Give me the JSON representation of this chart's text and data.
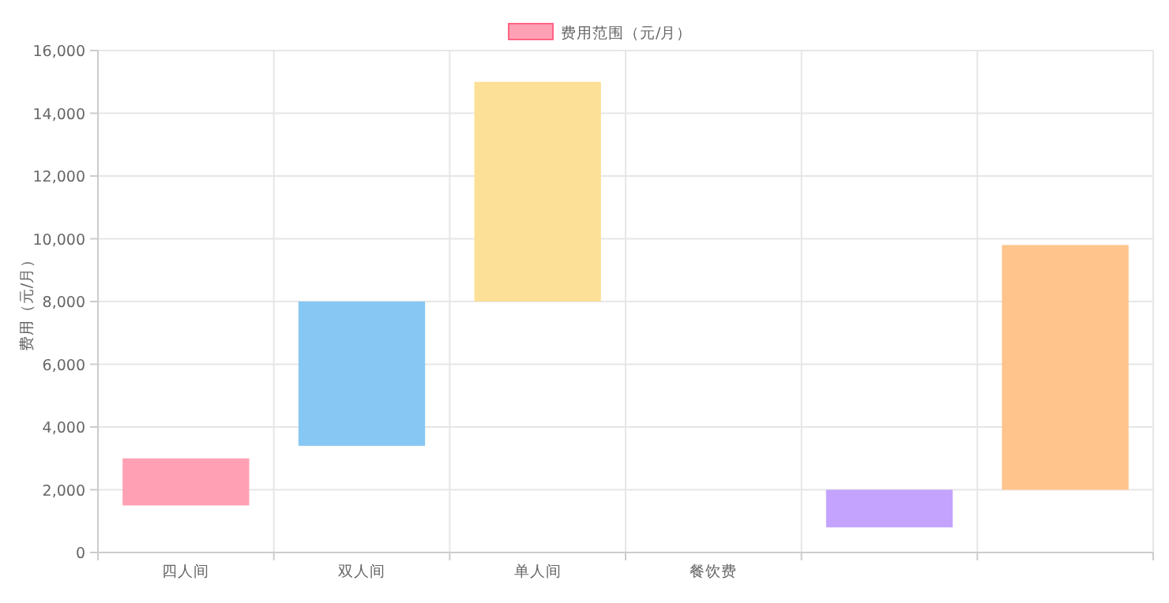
{
  "chart_data": {
    "type": "bar",
    "categories": [
      "四人间",
      "双人间",
      "单人间",
      "餐饮费",
      null,
      null
    ],
    "series": [
      {
        "name": "费用范围（元/月）",
        "colors": [
          "#ffa0b4",
          "#86c7f3",
          "#fde097",
          null,
          "#c4a3fe",
          "#fec48c"
        ],
        "base": [
          1500,
          3400,
          8000,
          null,
          800,
          2000
        ],
        "values": [
          1500,
          4600,
          7000,
          null,
          1200,
          7800
        ]
      }
    ],
    "ylabel": "费用（元/月）",
    "ylim": [
      0,
      16000
    ],
    "yticks": [
      {
        "value": 0,
        "label": "0"
      },
      {
        "value": 2000,
        "label": "2,000"
      },
      {
        "value": 4000,
        "label": "4,000"
      },
      {
        "value": 6000,
        "label": "6,000"
      },
      {
        "value": 8000,
        "label": "8,000"
      },
      {
        "value": 10000,
        "label": "10,000"
      },
      {
        "value": 12000,
        "label": "12,000"
      },
      {
        "value": 14000,
        "label": "14,000"
      },
      {
        "value": 16000,
        "label": "16,000"
      }
    ],
    "grid": true,
    "legend": "top"
  }
}
